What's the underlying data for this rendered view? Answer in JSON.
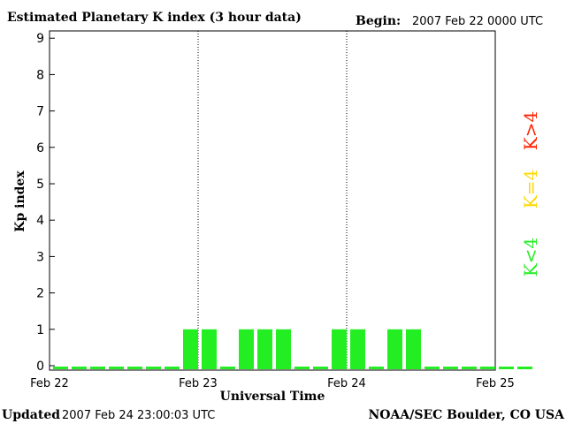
{
  "header": {
    "title": "Estimated Planetary K index (3 hour data)",
    "begin_label": "Begin:",
    "begin_value": "2007 Feb 22 0000 UTC"
  },
  "footer": {
    "updated_label": "Updated",
    "updated_value": "2007 Feb 24 23:00:03 UTC",
    "source": "NOAA/SEC Boulder, CO USA"
  },
  "legend": [
    {
      "label": "K>4",
      "color": "#ff2000"
    },
    {
      "label": "K=4",
      "color": "#ffd800"
    },
    {
      "label": "K<4",
      "color": "#22ee22"
    }
  ],
  "chart_data": {
    "type": "bar",
    "title": "Estimated Planetary K index (3 hour data)",
    "xlabel": "Universal Time",
    "ylabel": "Kp index",
    "ylim": [
      0,
      9.2
    ],
    "yticks": [
      0,
      1,
      2,
      3,
      4,
      5,
      6,
      7,
      8,
      9
    ],
    "xticks": [
      "Feb 22",
      "Feb 23",
      "Feb 24",
      "Feb 25"
    ],
    "day_separators": [
      "Feb 23",
      "Feb 24"
    ],
    "interval_hours": 3,
    "bar_color": "#22ee22",
    "values": [
      0,
      0,
      0,
      0,
      0,
      0,
      0,
      1,
      1,
      0,
      1,
      1,
      1,
      0,
      0,
      1,
      1,
      0,
      1,
      1,
      0,
      0,
      0,
      0,
      0,
      0
    ]
  }
}
